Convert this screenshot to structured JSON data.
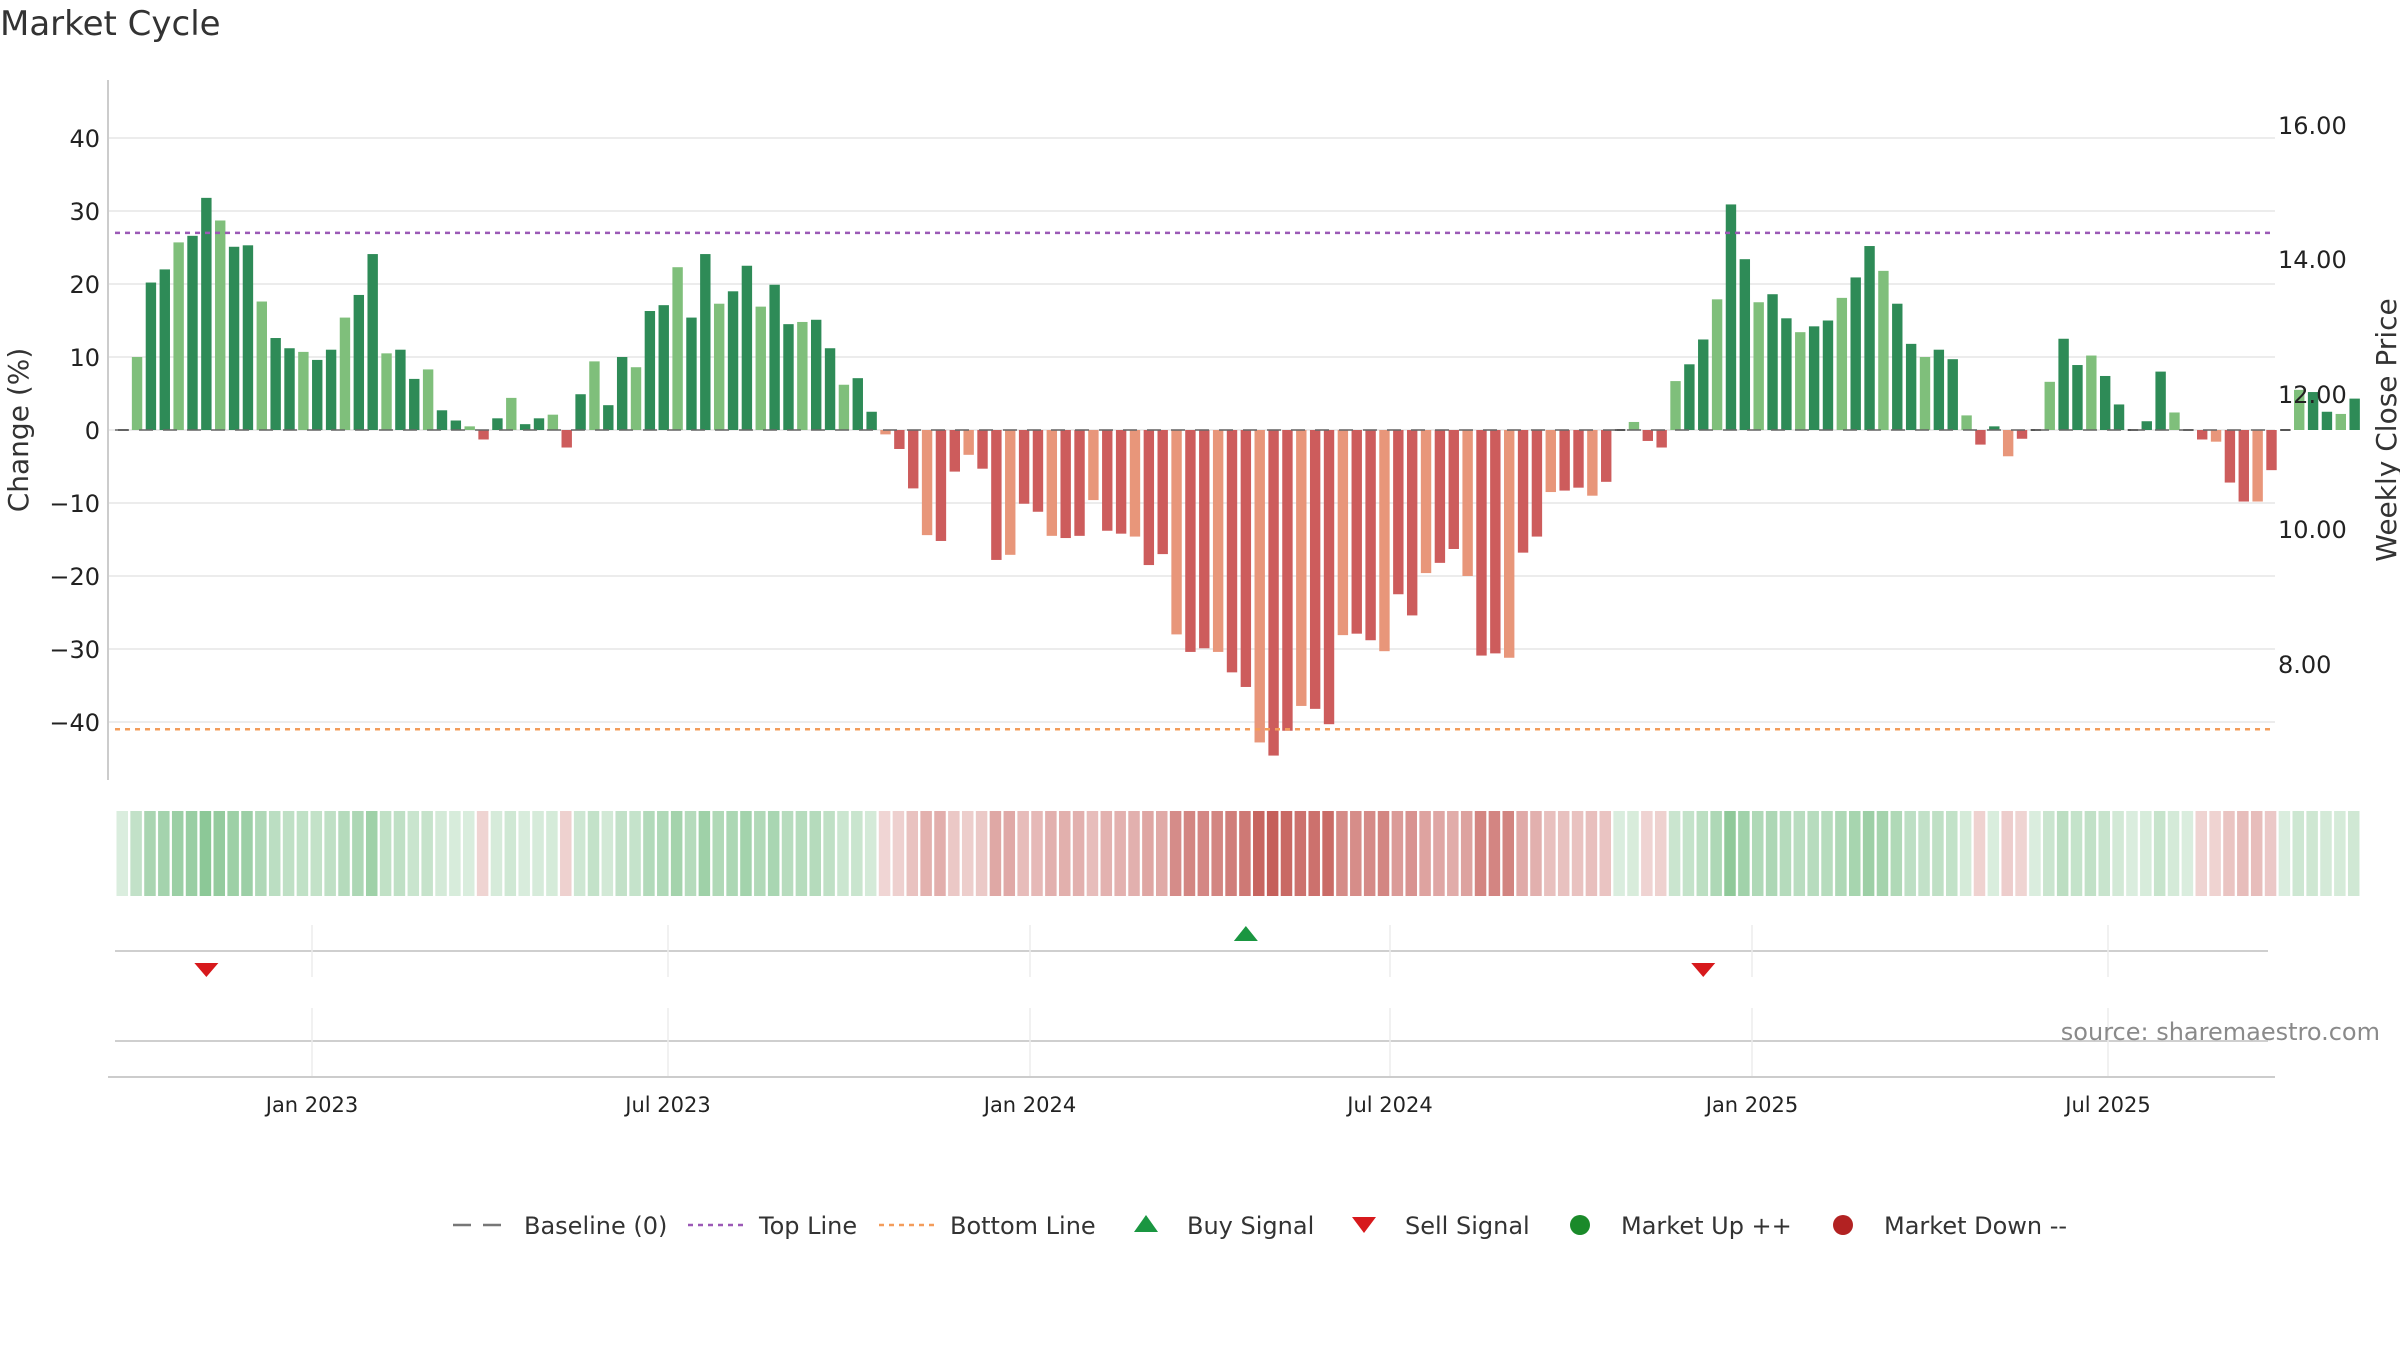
{
  "title": "Market Cycle",
  "source": "source: sharemaestro.com",
  "chart_data": {
    "type": "bar",
    "yaxis_left": {
      "label": "Change (%)",
      "ticks": [
        40,
        30,
        20,
        10,
        0,
        -10,
        -20,
        -30,
        -40
      ],
      "tick_labels": [
        "40",
        "30",
        "20",
        "10",
        "0",
        "−10",
        "−20",
        "−30",
        "−40"
      ],
      "range": [
        -48,
        48
      ]
    },
    "yaxis_right": {
      "label": "Weekly Close Price",
      "ticks": [
        "16.00",
        "14.00",
        "12.00",
        "10.00",
        "8.00"
      ]
    },
    "xaxis_ticks": [
      "Jan 2023",
      "Jul 2023",
      "Jan 2024",
      "Jul 2024",
      "Jan 2025",
      "Jul 2025"
    ],
    "top_line": 27,
    "bottom_line": -41,
    "values": [
      0,
      10,
      20.2,
      22,
      25.7,
      26.6,
      31.8,
      28.7,
      25.1,
      25.3,
      17.6,
      12.6,
      11.2,
      10.7,
      9.6,
      11,
      15.4,
      18.5,
      24.1,
      10.5,
      11,
      7,
      8.3,
      2.7,
      1.3,
      0.5,
      -1.3,
      1.6,
      4.4,
      0.8,
      1.6,
      2.1,
      -2.4,
      4.9,
      9.4,
      3.4,
      10,
      8.6,
      16.3,
      17.1,
      22.3,
      15.4,
      24.1,
      17.3,
      19,
      22.5,
      16.9,
      19.9,
      14.5,
      14.8,
      15.1,
      11.2,
      6.2,
      7.1,
      2.5,
      -0.6,
      -2.6,
      -8,
      -14.4,
      -15.2,
      -5.7,
      -3.4,
      -5.3,
      -17.8,
      -17.1,
      -10.1,
      -11.2,
      -14.5,
      -14.8,
      -14.5,
      -9.6,
      -13.8,
      -14.2,
      -14.6,
      -18.5,
      -17,
      -28,
      -30.4,
      -29.9,
      -30.4,
      -33.2,
      -35.2,
      -42.8,
      -44.6,
      -41.2,
      -37.8,
      -38.2,
      -40.3,
      -28.1,
      -27.9,
      -28.8,
      -30.3,
      -22.5,
      -25.4,
      -19.6,
      -18.2,
      -16.3,
      -20,
      -30.9,
      -30.6,
      -31.2,
      -16.8,
      -14.6,
      -8.5,
      -8.3,
      -7.9,
      -9,
      -7.1,
      0,
      1.1,
      -1.5,
      -2.4,
      6.7,
      9,
      12.4,
      17.9,
      30.9,
      23.4,
      17.5,
      18.6,
      15.3,
      13.4,
      14.2,
      15,
      18.1,
      20.9,
      25.2,
      21.8,
      17.3,
      11.8,
      10,
      11,
      9.7,
      2,
      -2,
      0.5,
      -3.6,
      -1.2,
      0,
      6.6,
      12.5,
      8.9,
      10.2,
      7.4,
      3.5,
      0,
      1.2,
      8,
      2.4,
      0,
      -1.3,
      -1.6,
      -7.2,
      -9.8,
      -9.8,
      -5.5,
      0,
      5.5,
      5.2,
      2.5,
      2.2,
      4.3
    ],
    "signals": [
      {
        "type": "sell",
        "index": 6
      },
      {
        "type": "buy",
        "index": 81
      },
      {
        "type": "sell",
        "index": 114
      }
    ],
    "legend": [
      {
        "label": "Baseline (0)",
        "symbol": "dash-line",
        "color": "#777777"
      },
      {
        "label": "Top Line",
        "symbol": "dotted-line",
        "color": "#9b59b6"
      },
      {
        "label": "Bottom Line",
        "symbol": "dotted-line",
        "color": "#f39c5a"
      },
      {
        "label": "Buy Signal",
        "symbol": "triangle-up",
        "color": "#1a9641"
      },
      {
        "label": "Sell Signal",
        "symbol": "triangle-down",
        "color": "#d7191c"
      },
      {
        "label": "Market Up ++",
        "symbol": "circle",
        "color": "#1a8a2a"
      },
      {
        "label": "Market Down --",
        "symbol": "circle",
        "color": "#b22222"
      }
    ]
  }
}
